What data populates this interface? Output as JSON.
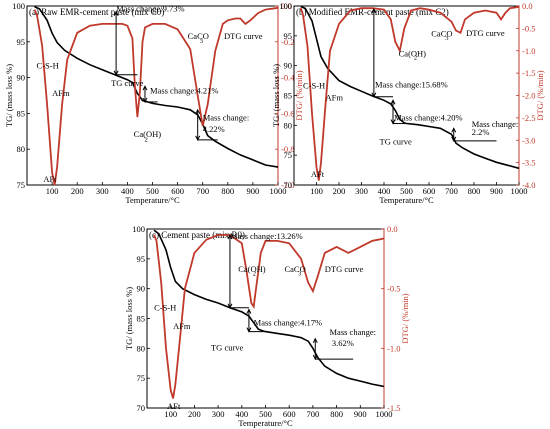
{
  "chart_data": [
    {
      "type": "line",
      "title": "(a) Raw EMR-cement paste (mix C0)",
      "xlabel": "Temperature/°C",
      "ylabel": "TG/ (mass loss %)",
      "y2label": "DTG/ (%/min)",
      "xlim": [
        0,
        1000
      ],
      "ylim": [
        75,
        100
      ],
      "y2lim": [
        -1.0,
        0.0
      ],
      "x_ticks": [
        "100",
        "200",
        "300",
        "400",
        "500",
        "600",
        "700",
        "800",
        "900",
        "1000"
      ],
      "y_ticks": [
        "75",
        "80",
        "85",
        "90",
        "95",
        "100"
      ],
      "y2_ticks": [
        "-1.0",
        "-0.8",
        "-0.6",
        "-0.4",
        "-0.2",
        "0.0"
      ],
      "series": [
        {
          "name": "TG curve",
          "color": "#000000",
          "x": [
            30,
            50,
            80,
            100,
            120,
            150,
            200,
            250,
            300,
            350,
            400,
            420,
            440,
            460,
            480,
            500,
            550,
            600,
            650,
            680,
            700,
            720,
            750,
            800,
            850,
            900,
            950,
            1000
          ],
          "y": [
            99.9,
            99.6,
            98.0,
            96.2,
            94.9,
            93.8,
            92.7,
            91.8,
            91.1,
            90.4,
            89.7,
            89.3,
            87.8,
            86.8,
            86.6,
            86.4,
            86.1,
            85.9,
            85.5,
            84.8,
            83.5,
            81.9,
            81.1,
            80.1,
            79.2,
            78.5,
            77.8,
            77.5
          ]
        },
        {
          "name": "DTG curve",
          "color": "#c0392b",
          "x": [
            30,
            40,
            60,
            80,
            100,
            110,
            120,
            140,
            160,
            200,
            250,
            300,
            350,
            380,
            400,
            420,
            430,
            440,
            450,
            460,
            470,
            500,
            550,
            600,
            650,
            680,
            700,
            720,
            750,
            780,
            800,
            830,
            850,
            870,
            890,
            920,
            950,
            1000
          ],
          "y": [
            -0.02,
            -0.05,
            -0.22,
            -0.55,
            -0.93,
            -1.0,
            -0.9,
            -0.55,
            -0.3,
            -0.15,
            -0.11,
            -0.1,
            -0.1,
            -0.1,
            -0.11,
            -0.18,
            -0.45,
            -0.62,
            -0.48,
            -0.2,
            -0.12,
            -0.1,
            -0.1,
            -0.13,
            -0.24,
            -0.5,
            -0.67,
            -0.55,
            -0.25,
            -0.1,
            -0.08,
            -0.07,
            -0.07,
            -0.1,
            -0.08,
            -0.04,
            -0.02,
            -0.01
          ]
        }
      ],
      "annotations": [
        {
          "text": "Mass change:9.73%",
          "x": 355,
          "y": 99.2
        },
        {
          "text": "Mass change:4.21%",
          "x": 490,
          "y": 87.8
        },
        {
          "text": "Mass change:",
          "x": 700,
          "y": 84.0
        },
        {
          "text": "4.22%",
          "x": 700,
          "y": 82.4
        },
        {
          "text": "C-S-H",
          "x": 38,
          "y": 91.3
        },
        {
          "text": "AFm",
          "x": 100,
          "y": 87.4
        },
        {
          "text": "AFt",
          "x": 65,
          "y": 75.4
        },
        {
          "text": "TG curve",
          "x": 335,
          "y": 88.8
        },
        {
          "text": "Ca(OH)",
          "x": 425,
          "y": 81.7
        },
        {
          "text": "2",
          "x": 468,
          "y": 81.1
        },
        {
          "text": "CaCO",
          "x": 640,
          "y": 95.4
        },
        {
          "text": "3",
          "x": 688,
          "y": 94.8
        },
        {
          "text": "DTG curve",
          "x": 785,
          "y": 95.4
        }
      ]
    },
    {
      "type": "line",
      "title": "(b) Modified EMR-cement paste (mix C2)",
      "xlabel": "Temperature/°C",
      "ylabel": "TG/ (mass loss %)",
      "y2label": "DTG/ (%/min)",
      "xlim": [
        0,
        1000
      ],
      "ylim": [
        70,
        100
      ],
      "y2lim": [
        -4.0,
        0.0
      ],
      "x_ticks": [
        "100",
        "200",
        "300",
        "400",
        "500",
        "600",
        "700",
        "800",
        "900",
        "1000"
      ],
      "y_ticks": [
        "70",
        "75",
        "80",
        "85",
        "90",
        "95",
        "100"
      ],
      "y2_ticks": [
        "-4.0",
        "-3.5",
        "-3.0",
        "-2.5",
        "-2.0",
        "-1.5",
        "-1.0",
        "-0.5",
        "0.0"
      ],
      "series": [
        {
          "name": "TG curve",
          "color": "#000000",
          "x": [
            30,
            50,
            80,
            100,
            120,
            150,
            200,
            250,
            300,
            350,
            400,
            430,
            450,
            470,
            490,
            500,
            550,
            600,
            650,
            700,
            720,
            750,
            800,
            850,
            900,
            950,
            1000
          ],
          "y": [
            99.9,
            99.6,
            97.5,
            94.5,
            91.5,
            89.5,
            87.5,
            86.5,
            85.7,
            84.9,
            84.2,
            83.6,
            82.5,
            81.0,
            80.4,
            80.3,
            80.1,
            79.8,
            79.5,
            78.5,
            77.0,
            76.2,
            75.2,
            74.5,
            73.8,
            73.3,
            72.8
          ]
        },
        {
          "name": "DTG curve",
          "color": "#c0392b",
          "x": [
            30,
            40,
            60,
            80,
            100,
            110,
            120,
            140,
            160,
            200,
            250,
            300,
            350,
            400,
            430,
            450,
            470,
            490,
            520,
            560,
            600,
            650,
            700,
            720,
            740,
            760,
            800,
            850,
            900,
            920,
            940,
            960,
            1000
          ],
          "y": [
            -0.05,
            -0.2,
            -0.9,
            -2.4,
            -3.6,
            -3.9,
            -3.5,
            -2.2,
            -1.0,
            -0.4,
            -0.1,
            -0.05,
            -0.05,
            -0.08,
            -0.3,
            -0.8,
            -1.0,
            -0.5,
            -0.1,
            -0.05,
            -0.08,
            -0.15,
            -0.35,
            -0.55,
            -0.6,
            -0.3,
            -0.15,
            -0.1,
            -0.15,
            -0.3,
            -0.15,
            -0.05,
            -0.02
          ]
        }
      ],
      "annotations": [
        {
          "text": "Ca(OH)",
          "x": 465,
          "y": 91.5
        },
        {
          "text": "2",
          "x": 533,
          "y": 91.0
        },
        {
          "text": "C-S-H",
          "x": 40,
          "y": 86.2
        },
        {
          "text": "Mass change:15.68%",
          "x": 360,
          "y": 86.3
        },
        {
          "text": "AFm",
          "x": 140,
          "y": 84.2
        },
        {
          "text": "Mass change:4.20%",
          "x": 445,
          "y": 80.8
        },
        {
          "text": "Mass change:",
          "x": 790,
          "y": 79.7
        },
        {
          "text": "2.2%",
          "x": 790,
          "y": 78.4
        },
        {
          "text": "TG curve",
          "x": 380,
          "y": 76.8
        },
        {
          "text": "AFt",
          "x": 75,
          "y": 71.3
        },
        {
          "text": "CaCO",
          "x": 610,
          "y": 94.9
        },
        {
          "text": "3",
          "x": 672,
          "y": 94.3
        },
        {
          "text": "DTG curve",
          "x": 765,
          "y": 95.0
        }
      ]
    },
    {
      "type": "line",
      "title": "(c) Cement paste (mix R0)",
      "xlabel": "Temperature/°C",
      "ylabel": "TG/ (mass loss %)",
      "y2label": "DTG/ (%/min)",
      "xlim": [
        0,
        1000
      ],
      "ylim": [
        70,
        100
      ],
      "y2lim": [
        -1.5,
        0.0
      ],
      "x_ticks": [
        "100",
        "200",
        "300",
        "400",
        "500",
        "600",
        "700",
        "800",
        "900",
        "1000"
      ],
      "y_ticks": [
        "70",
        "75",
        "80",
        "85",
        "90",
        "95",
        "100"
      ],
      "y2_ticks": [
        "-1.5",
        "-1.0",
        "-0.5",
        "0.0"
      ],
      "series": [
        {
          "name": "TG curve",
          "color": "#000000",
          "x": [
            30,
            50,
            80,
            100,
            120,
            150,
            200,
            250,
            300,
            350,
            400,
            430,
            450,
            470,
            490,
            500,
            550,
            600,
            650,
            680,
            700,
            720,
            750,
            800,
            850,
            900,
            950,
            1000
          ],
          "y": [
            99.8,
            99.2,
            96.5,
            93.5,
            91.2,
            90.0,
            89.0,
            88.2,
            87.6,
            86.8,
            86.1,
            85.4,
            84.3,
            83.2,
            82.9,
            82.8,
            82.5,
            82.2,
            81.8,
            81.2,
            80.0,
            78.5,
            77.0,
            75.8,
            75.0,
            74.5,
            74.0,
            73.6
          ]
        },
        {
          "name": "DTG curve",
          "color": "#c0392b",
          "x": [
            30,
            40,
            60,
            80,
            100,
            110,
            120,
            140,
            160,
            200,
            250,
            300,
            350,
            400,
            420,
            440,
            450,
            460,
            480,
            500,
            550,
            600,
            650,
            680,
            700,
            720,
            750,
            800,
            850,
            900,
            950,
            1000
          ],
          "y": [
            -0.05,
            -0.1,
            -0.45,
            -1.0,
            -1.35,
            -1.42,
            -1.3,
            -0.9,
            -0.5,
            -0.2,
            -0.09,
            -0.05,
            -0.05,
            -0.12,
            -0.35,
            -0.62,
            -0.65,
            -0.5,
            -0.2,
            -0.1,
            -0.1,
            -0.12,
            -0.25,
            -0.45,
            -0.52,
            -0.4,
            -0.2,
            -0.15,
            -0.2,
            -0.15,
            -0.1,
            -0.08
          ]
        }
      ],
      "annotations": [
        {
          "text": "Mass change:13.26%",
          "x": 350,
          "y": 98.3
        },
        {
          "text": "C-S-H",
          "x": 30,
          "y": 86.3
        },
        {
          "text": "AFm",
          "x": 110,
          "y": 83.2
        },
        {
          "text": "Ca(OH)",
          "x": 385,
          "y": 92.8
        },
        {
          "text": "2",
          "x": 446,
          "y": 92.2
        },
        {
          "text": "CaCO",
          "x": 580,
          "y": 92.8
        },
        {
          "text": "3",
          "x": 637,
          "y": 92.2
        },
        {
          "text": "DTG curve",
          "x": 750,
          "y": 92.8
        },
        {
          "text": "Mass change:4.17%",
          "x": 450,
          "y": 83.8
        },
        {
          "text": "TG curve",
          "x": 270,
          "y": 79.6
        },
        {
          "text": "Mass change:",
          "x": 770,
          "y": 82.2
        },
        {
          "text": "3.62%",
          "x": 780,
          "y": 80.4
        },
        {
          "text": "AFt",
          "x": 85,
          "y": 69.8
        }
      ]
    }
  ]
}
